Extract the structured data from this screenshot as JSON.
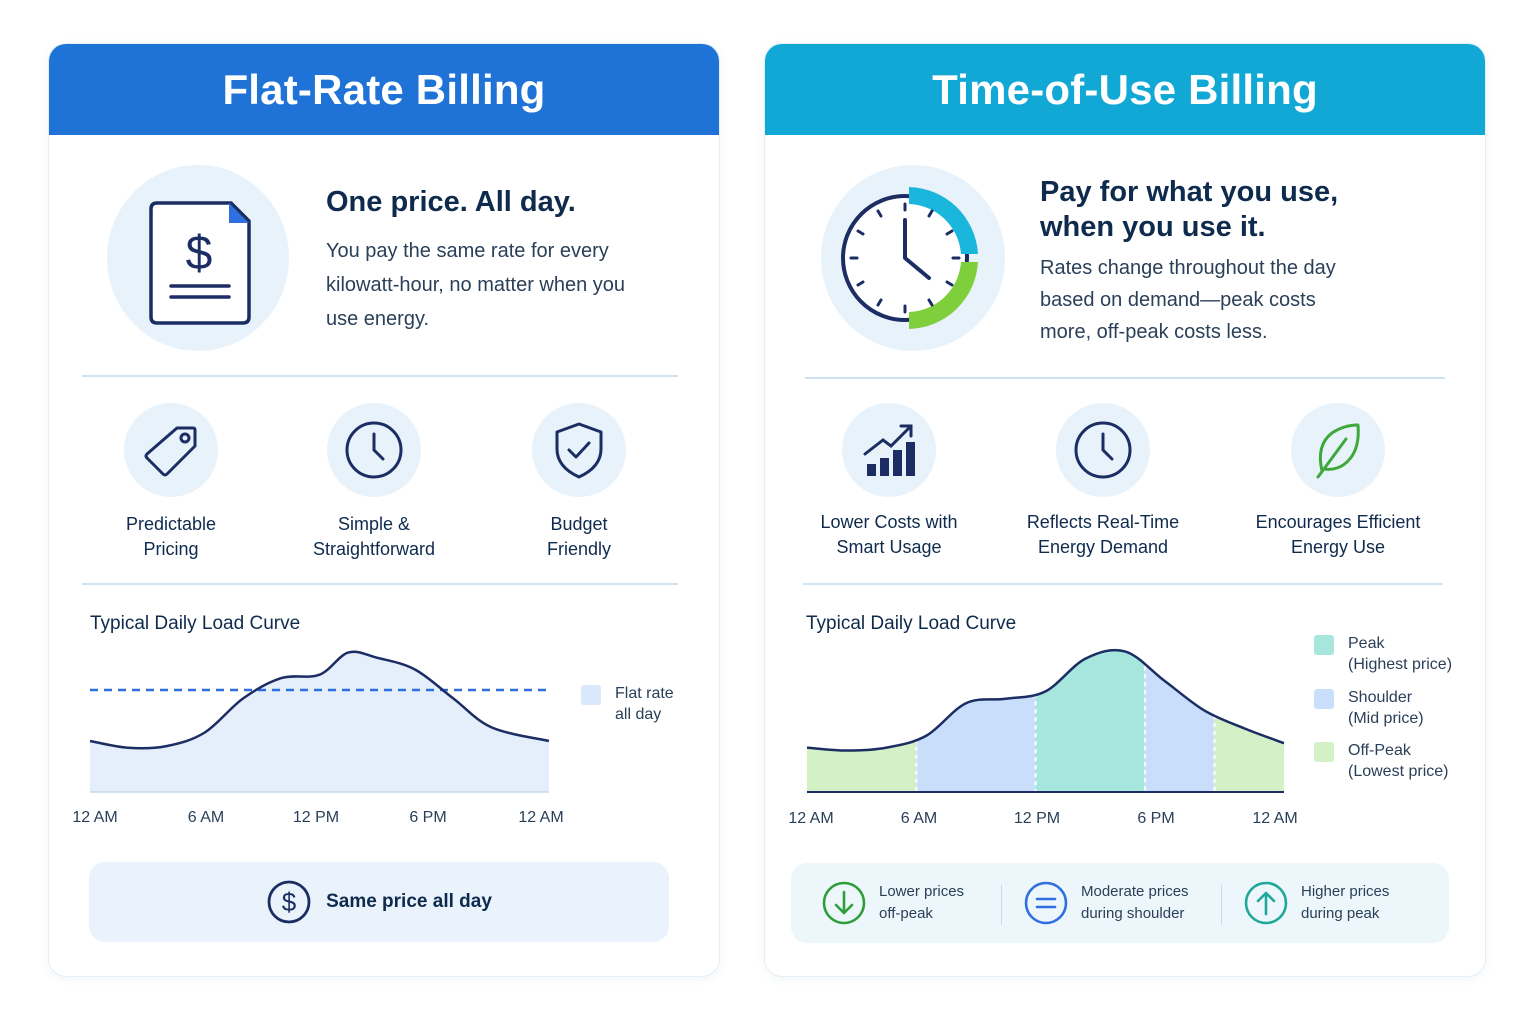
{
  "left": {
    "header": "Flat-Rate Billing",
    "tagline": "One price. All day.",
    "description": "You pay the same rate for every kilowatt-hour, no matter when you use energy.",
    "features": [
      {
        "icon": "price-tag-icon",
        "label": "Predictable Pricing"
      },
      {
        "icon": "clock-icon",
        "label": "Simple & Straightforward"
      },
      {
        "icon": "shield-check-icon",
        "label": "Budget Friendly"
      }
    ],
    "bottom_text": "Same price all day",
    "colors": {
      "header": "#1f73d6",
      "fill": "#e4effb",
      "line": "#1b2d63",
      "rate_line": "#2f6fe0"
    }
  },
  "right": {
    "header": "Time-of-Use Billing",
    "tagline_line1": "Pay for what you use,",
    "tagline_line2": "when you use it.",
    "description": "Rates change throughout the day based on demand—peak costs more, off-peak costs less.",
    "features": [
      {
        "icon": "bar-chart-up-icon",
        "label": "Lower Costs with Smart Usage"
      },
      {
        "icon": "clock-icon",
        "label": "Reflects Real-Time Energy Demand"
      },
      {
        "icon": "leaf-icon",
        "label": "Encourages Efficient Energy Use"
      }
    ],
    "bottom_items": [
      {
        "icon": "arrow-down-circle-icon",
        "line1": "Lower prices",
        "line2": "off-peak"
      },
      {
        "icon": "equals-circle-icon",
        "line1": "Moderate prices",
        "line2": "during shoulder"
      },
      {
        "icon": "arrow-up-circle-icon",
        "line1": "Higher prices",
        "line2": "during peak"
      }
    ],
    "colors": {
      "header": "#11a8d6",
      "peak": "#a6e6dc",
      "shoulder": "#c9defa",
      "offpeak": "#d3f0c7"
    }
  },
  "chart_data": [
    {
      "type": "area",
      "title": "Typical Daily Load Curve",
      "x_ticks": [
        "12 AM",
        "6 AM",
        "12 PM",
        "6 PM",
        "12 AM"
      ],
      "x": [
        0,
        2,
        4,
        6,
        8,
        10,
        12,
        13.5,
        15,
        17,
        19,
        21,
        24
      ],
      "series": [
        {
          "values": [
            0.3,
            0.26,
            0.27,
            0.35,
            0.55,
            0.67,
            0.69,
            0.82,
            0.79,
            0.72,
            0.55,
            0.38,
            0.3
          ]
        }
      ],
      "flat_rate_level": 0.6,
      "legend": [
        {
          "label": "Flat rate all day",
          "color": "#d9e9fb"
        }
      ],
      "ylim": [
        0,
        1
      ]
    },
    {
      "type": "area",
      "title": "Typical Daily Load Curve",
      "x_ticks": [
        "12 AM",
        "6 AM",
        "12 PM",
        "6 PM",
        "12 AM"
      ],
      "x": [
        0,
        2,
        4,
        6,
        8,
        10,
        12,
        14,
        16,
        18,
        20,
        22,
        24
      ],
      "series": [
        {
          "values": [
            0.3,
            0.28,
            0.3,
            0.38,
            0.6,
            0.63,
            0.68,
            0.9,
            0.95,
            0.75,
            0.55,
            0.43,
            0.33
          ]
        }
      ],
      "bands": [
        {
          "label": "Off-Peak",
          "from": 0,
          "to": 5.5,
          "color": "#d3f0c7"
        },
        {
          "label": "Shoulder",
          "from": 5.5,
          "to": 11.5,
          "color": "#c9defa"
        },
        {
          "label": "Peak",
          "from": 11.5,
          "to": 17,
          "color": "#a6e6dc"
        },
        {
          "label": "Shoulder",
          "from": 17,
          "to": 20.5,
          "color": "#c9defa"
        },
        {
          "label": "Off-Peak",
          "from": 20.5,
          "to": 24,
          "color": "#d3f0c7"
        }
      ],
      "legend": [
        {
          "label": "Peak",
          "sub": "(Highest price)",
          "color": "#a6e6dc"
        },
        {
          "label": "Shoulder",
          "sub": "(Mid price)",
          "color": "#c9defa"
        },
        {
          "label": "Off-Peak",
          "sub": "(Lowest price)",
          "color": "#d3f0c7"
        }
      ],
      "ylim": [
        0,
        1
      ]
    }
  ]
}
